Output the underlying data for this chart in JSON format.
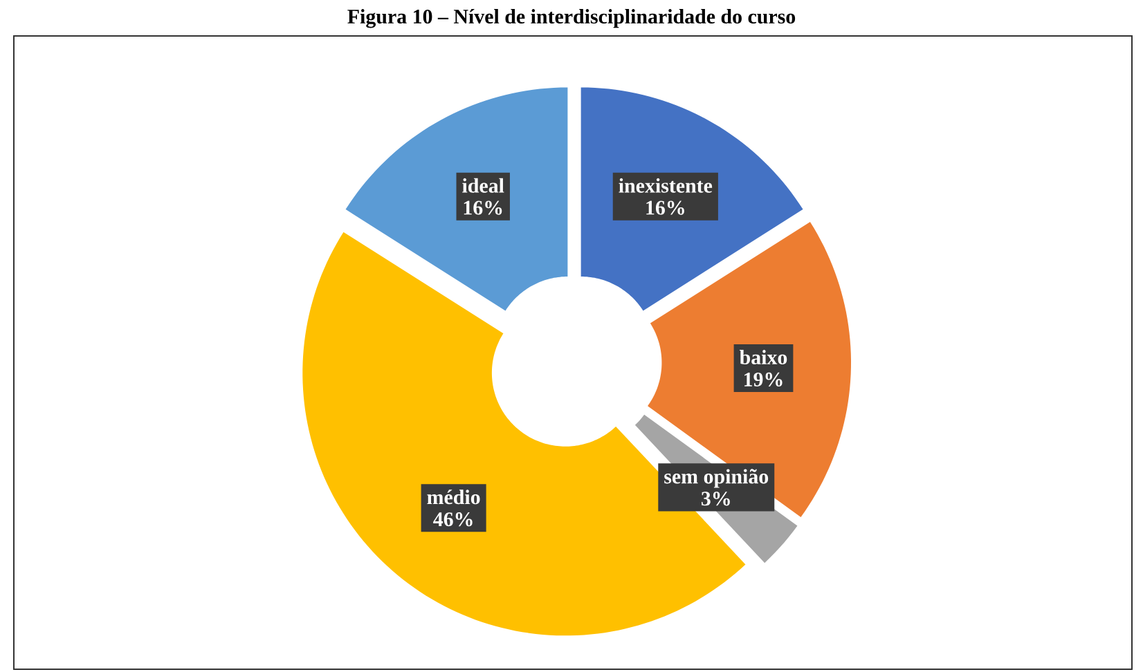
{
  "chart_data": {
    "type": "donut",
    "title": "Figura 10 – Nível de interdisciplinaridade do curso",
    "categories": [
      "inexistente",
      "baixo",
      "sem opinião",
      "médio",
      "ideal"
    ],
    "values": [
      16,
      19,
      3,
      46,
      16
    ],
    "value_labels": [
      "16%",
      "19%",
      "3%",
      "46%",
      "16%"
    ],
    "colors": [
      "#4472c4",
      "#ed7d31",
      "#a5a5a5",
      "#ffc000",
      "#5b9bd5"
    ]
  }
}
